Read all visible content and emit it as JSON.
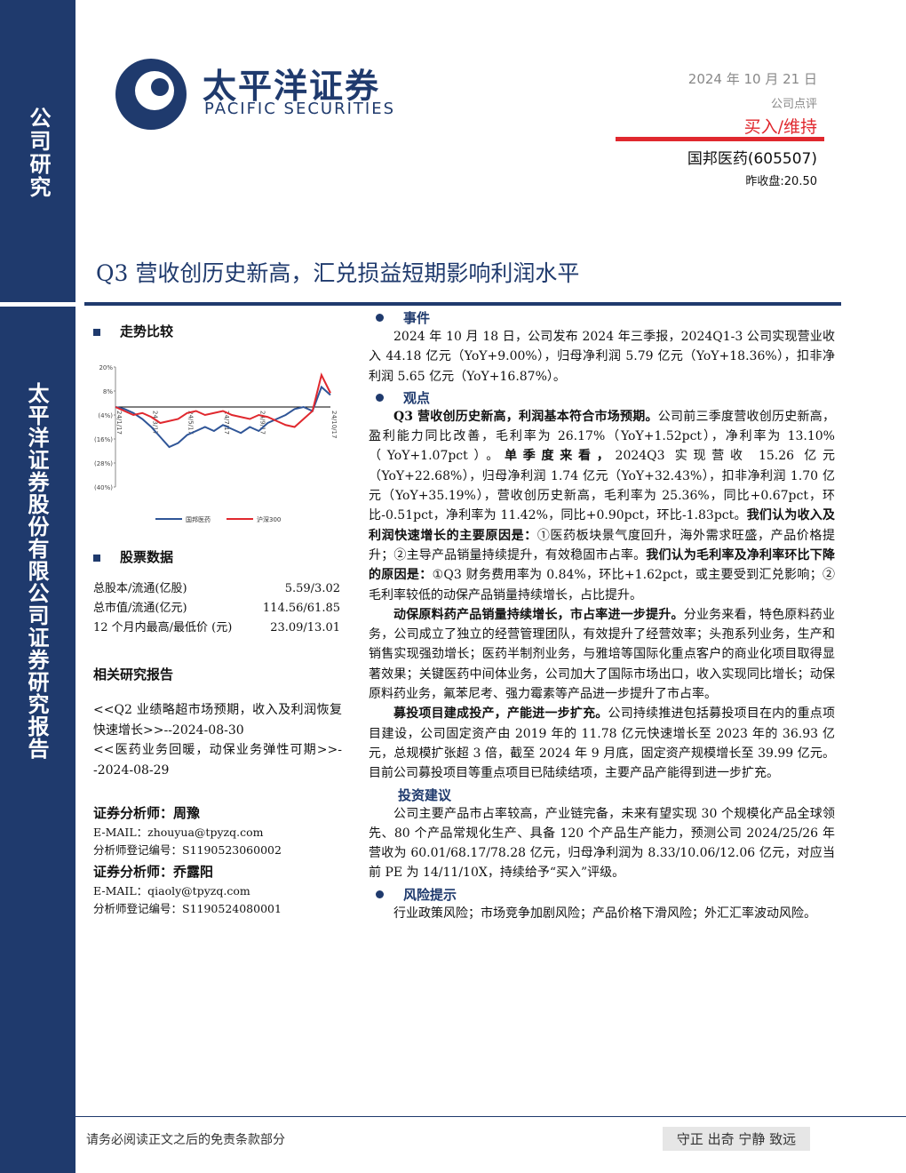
{
  "header": {
    "company_name": "太平洋证券",
    "company_name_en": "PACIFIC SECURITIES",
    "date": "2024 年 10 月 21 日",
    "report_type": "公司点评",
    "rating": "买入/维持",
    "stock": "国邦医药(605507)",
    "close_price": "昨收盘:20.50"
  },
  "sidebar": {
    "top": "公司研究",
    "bottom": "太平洋证券股份有限公司证券研究报告"
  },
  "title": "Q3 营收创历史新高，汇兑损益短期影响利润水平",
  "trend": {
    "heading": "走势比较",
    "chart_data": {
      "type": "line",
      "x": [
        "24/1/17",
        null,
        null,
        null,
        "24/3/17",
        null,
        null,
        null,
        "24/5/17",
        null,
        null,
        null,
        "24/7/17",
        null,
        null,
        null,
        "24/9/17",
        null,
        null,
        null,
        null,
        null,
        null,
        null,
        "24/10/17"
      ],
      "series": [
        {
          "name": "国邦医药",
          "color": "#2f5597",
          "values": [
            0,
            -1,
            -3,
            -6,
            -10,
            -15,
            -20,
            -18,
            -14,
            -12,
            -10,
            -12,
            -9,
            -11,
            -13,
            -10,
            -12,
            -8,
            -6,
            -4,
            -1,
            0,
            -2,
            10,
            6
          ]
        },
        {
          "name": "沪深300",
          "color": "#e0282e",
          "values": [
            0,
            -2,
            -4,
            -3,
            -5,
            -8,
            -7,
            -6,
            -3,
            -2,
            -4,
            -3,
            -2,
            -4,
            -5,
            -6,
            -4,
            -5,
            -7,
            -9,
            -10,
            -6,
            -2,
            16,
            7
          ]
        }
      ],
      "ylim": [
        -40,
        20
      ],
      "yticks": [
        {
          "value": 20,
          "label": "20%"
        },
        {
          "value": 8,
          "label": "8%"
        },
        {
          "value": -4,
          "label": "(4%)"
        },
        {
          "value": -16,
          "label": "(16%)"
        },
        {
          "value": -28,
          "label": "(28%)"
        },
        {
          "value": -40,
          "label": "(40%)"
        }
      ]
    }
  },
  "stock_data": {
    "heading": "股票数据",
    "rows": [
      [
        "总股本/流通(亿股)",
        "5.59/3.02"
      ],
      [
        "总市值/流通(亿元)",
        "114.56/61.85"
      ],
      [
        "12 个月内最高/最低价 (元)",
        "23.09/13.01"
      ]
    ]
  },
  "related": {
    "heading": "相关研究报告",
    "items": [
      "<<Q2 业绩略超市场预期，收入及利润恢复快速增长>>--2024-08-30",
      "<<医药业务回暖，动保业务弹性可期>>--2024-08-29"
    ]
  },
  "analysts": [
    "证券分析师：周豫",
    "E-MAIL：zhouyua@tpyzq.com",
    "分析师登记编号：S1190523060002",
    "证券分析师：乔露阳",
    "E-MAIL：qiaoly@tpyzq.com",
    "分析师登记编号：S1190524080001"
  ],
  "sections": [
    {
      "heading": "事件",
      "bullet": true,
      "paragraphs": [
        [
          {
            "text": "2024 年 10 月 18 日，公司发布 2024 年三季报，2024Q1-3 公司实现营业收入 44.18 亿元（YoY+9.00%），归母净利润 5.79 亿元（YoY+18.36%），扣非净利润 5.65 亿元（YoY+16.87%）。",
            "bold": false
          }
        ]
      ]
    },
    {
      "heading": "观点",
      "bullet": true,
      "paragraphs": [
        [
          {
            "text": "Q3 营收创历史新高，利润基本符合市场预期。",
            "bold": true
          },
          {
            "text": "公司前三季度营收创历史新高，盈利能力同比改善，毛利率为 26.17%（YoY+1.52pct），净利率为 13.10%（YoY+1.07pct）。",
            "bold": false
          },
          {
            "text": "单季度来看，",
            "bold": true
          },
          {
            "text": "2024Q3 实现营收 15.26 亿元（YoY+22.68%），归母净利润 1.74 亿元（YoY+32.43%），扣非净利润 1.70 亿元（YoY+35.19%），营收创历史新高，毛利率为 25.36%，同比+0.67pct，环比-0.51pct，净利率为 11.42%，同比+0.90pct，环比-1.83pct。",
            "bold": false
          },
          {
            "text": "我们认为收入及利润快速增长的主要原因是：",
            "bold": true
          },
          {
            "text": "①医药板块景气度回升，海外需求旺盛，产品价格提升；②主导产品销量持续提升，有效稳固市占率。",
            "bold": false
          },
          {
            "text": "我们认为毛利率及净利率环比下降的原因是：",
            "bold": true
          },
          {
            "text": "①Q3 财务费用率为 0.84%，环比+1.62pct，或主要受到汇兑影响；②毛利率较低的动保产品销量持续增长，占比提升。",
            "bold": false
          }
        ],
        [
          {
            "text": "动保原料药产品销量持续增长，市占率进一步提升。",
            "bold": true
          },
          {
            "text": "分业务来看，特色原料药业务，公司成立了独立的经营管理团队，有效提升了经营效率；头孢系列业务，生产和销售实现强劲增长；医药半制剂业务，与雅培等国际化重点客户的商业化项目取得显著效果；关键医药中间体业务，公司加大了国际市场出口，收入实现同比增长；动保原料药业务，氟苯尼考、强力霉素等产品进一步提升了市占率。",
            "bold": false
          }
        ],
        [
          {
            "text": "募投项目建成投产，产能进一步扩充。",
            "bold": true
          },
          {
            "text": "公司持续推进包括募投项目在内的重点项目建设，公司固定资产由 2019 年的 11.78 亿元快速增长至 2023 年的 36.93 亿元，总规模扩张超 3 倍，截至 2024 年 9 月底，固定资产规模增长至 39.99 亿元。目前公司募投项目等重点项目已陆续结项，主要产品产能得到进一步扩充。",
            "bold": false
          }
        ]
      ]
    },
    {
      "heading": "投资建议",
      "bullet": false,
      "paragraphs": [
        [
          {
            "text": "公司主要产品市占率较高，产业链完备，未来有望实现 30 个规模化产品全球领先、80 个产品常规化生产、具备 120 个产品生产能力，预测公司 2024/25/26 年营收为 60.01/68.17/78.28 亿元，归母净利润为 8.33/10.06/12.06 亿元，对应当前 PE 为 14/11/10X，持续给予“买入”评级。",
            "bold": false
          }
        ]
      ]
    },
    {
      "heading": "风险提示",
      "bullet": true,
      "paragraphs": [
        [
          {
            "text": "行业政策风险；市场竞争加剧风险；产品价格下滑风险；外汇汇率波动风险。",
            "bold": false
          }
        ]
      ]
    }
  ],
  "footer": {
    "disclaimer": "请务必阅读正文之后的免责条款部分",
    "motto": "守正 出奇 宁静 致远"
  }
}
